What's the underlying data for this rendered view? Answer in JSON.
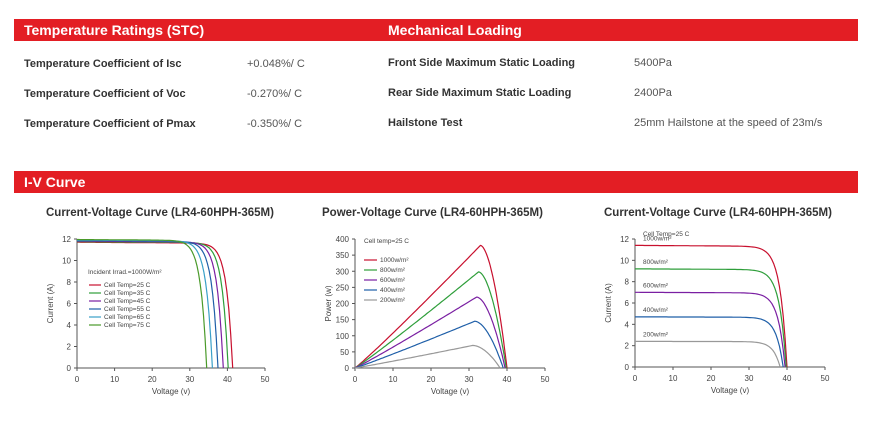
{
  "temp_section": {
    "title": "Temperature Ratings (STC)",
    "rows": [
      {
        "label": "Temperature Coefficient of  Isc",
        "value": "+0.048%/ C"
      },
      {
        "label": "Temperature Coefficient of  Voc",
        "value": "-0.270%/ C"
      },
      {
        "label": "Temperature Coefficient of  Pmax",
        "value": "-0.350%/ C"
      }
    ]
  },
  "mech_section": {
    "title": "Mechanical Loading",
    "rows": [
      {
        "label": "Front Side Maximum Static Loading",
        "value": "5400Pa"
      },
      {
        "label": "Rear Side Maximum Static Loading",
        "value": "2400Pa"
      },
      {
        "label": "Hailstone Test",
        "value": "25mm Hailstone at the speed of 23m/s"
      }
    ]
  },
  "iv_section": {
    "title": "I-V Curve"
  },
  "colors": {
    "accent": "#e31e24"
  },
  "chart_data": [
    {
      "type": "line",
      "title": "Current-Voltage Curve (LR4-60HPH-365M)",
      "xlabel": "Voltage (v)",
      "ylabel": "Current (A)",
      "xlim": [
        0,
        50
      ],
      "ylim": [
        0,
        12
      ],
      "xticks": [
        0,
        10,
        20,
        30,
        40,
        50
      ],
      "yticks": [
        0,
        2,
        4,
        6,
        8,
        10,
        12
      ],
      "annotation": "Incident Irrad.=1000W/m²",
      "legend_position": "left",
      "series": [
        {
          "name": "Cell Temp=25 C",
          "color": "#c8102e",
          "isc": 11.7,
          "voc": 41.4
        },
        {
          "name": "Cell Temp=35 C",
          "color": "#2e9e3a",
          "isc": 11.75,
          "voc": 40.2
        },
        {
          "name": "Cell Temp=45 C",
          "color": "#7a1fa2",
          "isc": 11.8,
          "voc": 38.9
        },
        {
          "name": "Cell Temp=55 C",
          "color": "#1f5fa8",
          "isc": 11.85,
          "voc": 37.5
        },
        {
          "name": "Cell Temp=65 C",
          "color": "#3aa0c8",
          "isc": 11.9,
          "voc": 36.0
        },
        {
          "name": "Cell Temp=75 C",
          "color": "#4a9a2a",
          "isc": 11.95,
          "voc": 34.5
        }
      ]
    },
    {
      "type": "line",
      "title": "Power-Voltage Curve (LR4-60HPH-365M)",
      "xlabel": "Voltage (v)",
      "ylabel": "Power (w)",
      "xlim": [
        0,
        50
      ],
      "ylim": [
        0,
        400
      ],
      "xticks": [
        0,
        10,
        20,
        30,
        40,
        50
      ],
      "yticks": [
        0,
        50,
        100,
        150,
        200,
        250,
        300,
        350,
        400
      ],
      "annotation": "Cell temp=25 C",
      "legend_position": "top-left",
      "series": [
        {
          "name": "1000w/m²",
          "color": "#c8102e",
          "pmax": 380,
          "vmp": 33.0,
          "voc": 40.0
        },
        {
          "name": "800w/m²",
          "color": "#2e9e3a",
          "pmax": 298,
          "vmp": 32.5,
          "voc": 39.8
        },
        {
          "name": "600w/m²",
          "color": "#7a1fa2",
          "pmax": 220,
          "vmp": 32.0,
          "voc": 39.5
        },
        {
          "name": "400w/m²",
          "color": "#1f5fa8",
          "pmax": 145,
          "vmp": 31.5,
          "voc": 39.0
        },
        {
          "name": "200w/m²",
          "color": "#999999",
          "pmax": 70,
          "vmp": 31.0,
          "voc": 38.2
        }
      ]
    },
    {
      "type": "line",
      "title": "Current-Voltage Curve (LR4-60HPH-365M)",
      "xlabel": "Voltage (v)",
      "ylabel": "Current (A)",
      "xlim": [
        0,
        50
      ],
      "ylim": [
        0,
        12
      ],
      "xticks": [
        0,
        10,
        20,
        30,
        40,
        50
      ],
      "yticks": [
        0,
        2,
        4,
        6,
        8,
        10,
        12
      ],
      "annotation": "Cell Temp=25 C",
      "series": [
        {
          "name": "1000w/m²",
          "color": "#c8102e",
          "isc": 11.4,
          "voc": 40.0
        },
        {
          "name": "800w/m²",
          "color": "#2e9e3a",
          "isc": 9.2,
          "voc": 39.8
        },
        {
          "name": "600w/m²",
          "color": "#7a1fa2",
          "isc": 7.0,
          "voc": 39.5
        },
        {
          "name": "400w/m²",
          "color": "#1f5fa8",
          "isc": 4.7,
          "voc": 39.0
        },
        {
          "name": "200w/m²",
          "color": "#999999",
          "isc": 2.4,
          "voc": 38.2
        }
      ]
    }
  ]
}
